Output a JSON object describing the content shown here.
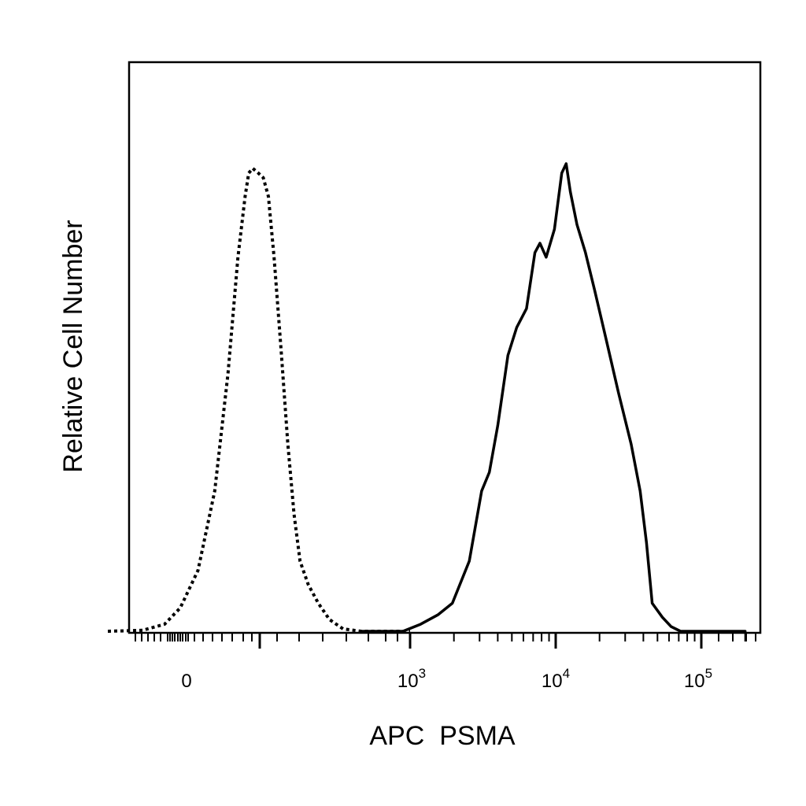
{
  "chart_data": {
    "type": "line",
    "xlabel": "APC  PSMA",
    "ylabel": "Relative Cell Number",
    "x_scale": "biexponential",
    "x_tick_labels": [
      {
        "base": "0",
        "exp": ""
      },
      {
        "base": "10",
        "exp": "3"
      },
      {
        "base": "10",
        "exp": "4"
      },
      {
        "base": "10",
        "exp": "5"
      }
    ],
    "x_tick_values": [
      0,
      1000,
      10000,
      100000
    ],
    "xlim": [
      -250,
      200000
    ],
    "ylim": [
      0,
      100
    ],
    "grid": false,
    "legend": "none",
    "series": [
      {
        "style": "dotted",
        "color": "#000000",
        "points": [
          [
            -250,
            0
          ],
          [
            -140,
            0.2
          ],
          [
            -70,
            1.5
          ],
          [
            -20,
            5
          ],
          [
            20,
            13
          ],
          [
            50,
            30
          ],
          [
            75,
            55
          ],
          [
            95,
            80
          ],
          [
            110,
            93
          ],
          [
            118,
            98
          ],
          [
            127,
            99
          ],
          [
            140,
            98
          ],
          [
            152,
            97
          ],
          [
            165,
            93
          ],
          [
            180,
            80
          ],
          [
            200,
            60
          ],
          [
            220,
            40
          ],
          [
            240,
            25
          ],
          [
            260,
            15
          ],
          [
            290,
            10
          ],
          [
            330,
            6
          ],
          [
            380,
            2.5
          ],
          [
            450,
            0.5
          ],
          [
            560,
            0
          ],
          [
            1000,
            0
          ]
        ]
      },
      {
        "style": "solid",
        "color": "#000000",
        "points": [
          [
            560,
            0
          ],
          [
            920,
            0
          ],
          [
            1180,
            1.5
          ],
          [
            1550,
            3.5
          ],
          [
            1950,
            6
          ],
          [
            2550,
            15
          ],
          [
            3100,
            30
          ],
          [
            3500,
            34
          ],
          [
            4000,
            44
          ],
          [
            4700,
            59
          ],
          [
            5400,
            65
          ],
          [
            6300,
            69
          ],
          [
            7200,
            81
          ],
          [
            7800,
            83
          ],
          [
            8600,
            80
          ],
          [
            9800,
            86
          ],
          [
            11000,
            98
          ],
          [
            11800,
            100
          ],
          [
            12600,
            94
          ],
          [
            14000,
            87
          ],
          [
            16000,
            81
          ],
          [
            18500,
            73
          ],
          [
            22000,
            63
          ],
          [
            27000,
            51
          ],
          [
            33000,
            40
          ],
          [
            38000,
            30
          ],
          [
            42000,
            19
          ],
          [
            46000,
            6
          ],
          [
            54000,
            3
          ],
          [
            62000,
            1
          ],
          [
            72000,
            0
          ],
          [
            200000,
            0
          ]
        ]
      }
    ]
  }
}
